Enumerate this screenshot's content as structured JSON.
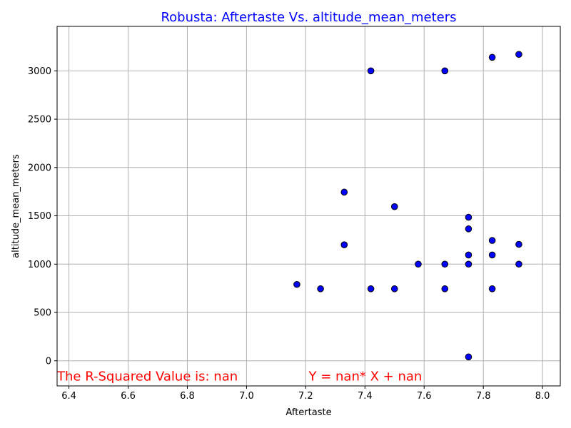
{
  "chart_data": {
    "type": "scatter",
    "title": "Robusta: Aftertaste Vs. altitude_mean_meters",
    "xlabel": "Aftertaste",
    "ylabel": "altitude_mean_meters",
    "xlim": [
      6.36,
      8.06
    ],
    "ylim": [
      -260,
      3460
    ],
    "x_ticks": [
      6.4,
      6.6,
      6.8,
      7.0,
      7.2,
      7.4,
      7.6,
      7.8,
      8.0
    ],
    "x_tick_labels": [
      "6.4",
      "6.6",
      "6.8",
      "7.0",
      "7.2",
      "7.4",
      "7.6",
      "7.8",
      "8.0"
    ],
    "y_ticks": [
      0,
      500,
      1000,
      1500,
      2000,
      2500,
      3000
    ],
    "y_tick_labels": [
      "0",
      "500",
      "1000",
      "1500",
      "2000",
      "2500",
      "3000"
    ],
    "grid": true,
    "legend": "none",
    "colors": {
      "title": "#0000ff",
      "marker_fill": "#0000ff",
      "marker_edge": "#000000",
      "annotation": "#ff0000",
      "grid": "#b0b0b0",
      "axes": "#000000"
    },
    "points": [
      {
        "x": 7.17,
        "y": 790
      },
      {
        "x": 7.25,
        "y": 745
      },
      {
        "x": 7.33,
        "y": 1745
      },
      {
        "x": 7.33,
        "y": 1200
      },
      {
        "x": 7.42,
        "y": 3000
      },
      {
        "x": 7.42,
        "y": 745
      },
      {
        "x": 7.5,
        "y": 1595
      },
      {
        "x": 7.5,
        "y": 745
      },
      {
        "x": 7.58,
        "y": 1000
      },
      {
        "x": 7.67,
        "y": 3000
      },
      {
        "x": 7.67,
        "y": 1000
      },
      {
        "x": 7.67,
        "y": 745
      },
      {
        "x": 7.75,
        "y": 1485
      },
      {
        "x": 7.75,
        "y": 1365
      },
      {
        "x": 7.75,
        "y": 1095
      },
      {
        "x": 7.75,
        "y": 1000
      },
      {
        "x": 7.75,
        "y": 40
      },
      {
        "x": 7.83,
        "y": 3140
      },
      {
        "x": 7.83,
        "y": 1245
      },
      {
        "x": 7.83,
        "y": 1095
      },
      {
        "x": 7.83,
        "y": 745
      },
      {
        "x": 7.92,
        "y": 3170
      },
      {
        "x": 7.92,
        "y": 1205
      },
      {
        "x": 7.92,
        "y": 1000
      }
    ],
    "annotations": [
      {
        "text": "The R-Squared Value is: nan",
        "x": 6.36,
        "y": -160
      },
      {
        "text": "Y = nan* X + nan",
        "x": 7.21,
        "y": -160
      }
    ]
  }
}
